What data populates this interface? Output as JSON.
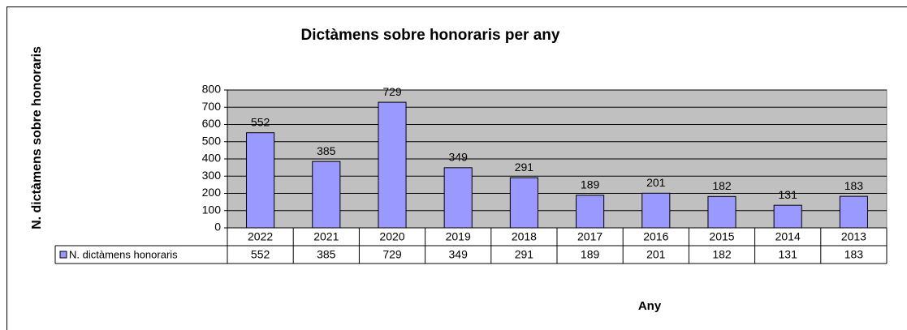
{
  "chart_data": {
    "type": "bar",
    "title": "Dictàmens sobre honoraris per any",
    "y_label": "N. dictàmens sobre honoraris",
    "x_label": "Any",
    "categories": [
      "2022",
      "2021",
      "2020",
      "2019",
      "2018",
      "2017",
      "2016",
      "2015",
      "2014",
      "2013"
    ],
    "series": [
      {
        "name": "N. dictàmens honoraris",
        "color": "#9999ff",
        "values": [
          552,
          385,
          729,
          349,
          291,
          189,
          201,
          182,
          131,
          183
        ]
      }
    ],
    "ylim": [
      0,
      800
    ],
    "yticks": [
      0,
      100,
      200,
      300,
      400,
      500,
      600,
      700,
      800
    ],
    "grid": true,
    "plot_background": "#c0c0c0"
  }
}
